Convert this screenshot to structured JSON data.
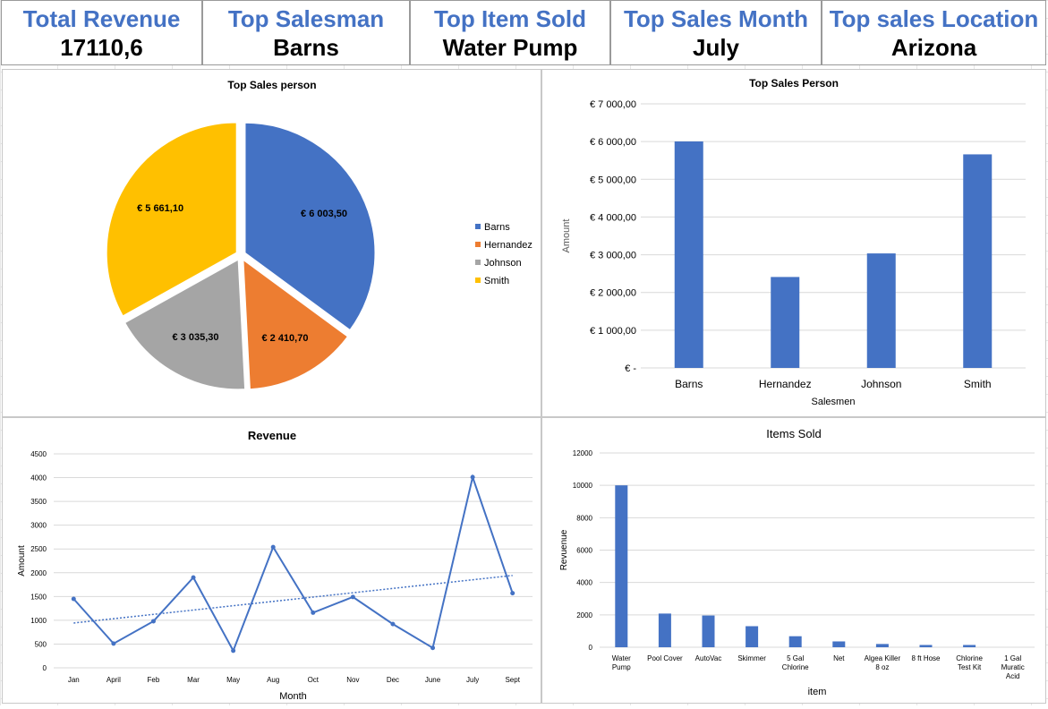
{
  "kpis": [
    {
      "title": "Total Revenue",
      "value": "17110,6"
    },
    {
      "title": "Top Salesman",
      "value": "Barns"
    },
    {
      "title": "Top Item Sold",
      "value": "Water Pump"
    },
    {
      "title": "Top Sales Month",
      "value": "July"
    },
    {
      "title": "Top sales Location",
      "value": "Arizona"
    }
  ],
  "colors": {
    "blue": "#4472c4",
    "orange": "#ed7d31",
    "gray": "#a5a5a5",
    "yellow": "#ffc000"
  },
  "chart_data": [
    {
      "type": "pie",
      "title": "Top Sales person",
      "categories": [
        "Barns",
        "Hernandez",
        "Johnson",
        "Smith"
      ],
      "values": [
        6003.5,
        2410.7,
        3035.3,
        5661.1
      ],
      "data_labels": [
        "€ 6 003,50",
        "€ 2 410,70",
        "€ 3 035,30",
        "€ 5 661,10"
      ],
      "colors": [
        "#4472c4",
        "#ed7d31",
        "#a5a5a5",
        "#ffc000"
      ],
      "legend": "right"
    },
    {
      "type": "bar",
      "title": "Top Sales Person",
      "categories": [
        "Barns",
        "Hernandez",
        "Johnson",
        "Smith"
      ],
      "values": [
        6003.5,
        2410.7,
        3035.3,
        5661.1
      ],
      "xlabel": "Salesmen",
      "ylabel": "Amount",
      "ylim": [
        0,
        7000
      ],
      "yticks": [
        "€ -",
        "€ 1 000,00",
        "€ 2 000,00",
        "€ 3 000,00",
        "€ 4 000,00",
        "€ 5 000,00",
        "€ 6 000,00",
        "€ 7 000,00"
      ],
      "grid": true
    },
    {
      "type": "line",
      "title": "Revenue",
      "categories": [
        "Jan",
        "April",
        "Feb",
        "Mar",
        "May",
        "Aug",
        "Oct",
        "Nov",
        "Dec",
        "June",
        "July",
        "Sept"
      ],
      "values": [
        1450,
        510,
        980,
        1900,
        360,
        2540,
        1160,
        1490,
        920,
        420,
        4010,
        1570
      ],
      "trendline": "linear",
      "xlabel": "Month",
      "ylabel": "Amount",
      "ylim": [
        0,
        4500
      ],
      "yticks": [
        "0",
        "500",
        "1000",
        "1500",
        "2000",
        "2500",
        "3000",
        "3500",
        "4000",
        "4500"
      ],
      "grid": true
    },
    {
      "type": "bar",
      "title": "Items Sold",
      "categories": [
        [
          "Water",
          "Pump"
        ],
        [
          "Pool Cover"
        ],
        [
          "AutoVac"
        ],
        [
          "Skimmer"
        ],
        [
          "5 Gal",
          "Chlorine"
        ],
        [
          "Net"
        ],
        [
          "Algea Killer",
          "8 oz"
        ],
        [
          "8 ft Hose"
        ],
        [
          "Chlorine",
          "Test Kit"
        ],
        [
          "1 Gal",
          "Muratic",
          "Acid"
        ]
      ],
      "values": [
        10000,
        2080,
        1960,
        1300,
        680,
        360,
        200,
        140,
        140,
        0
      ],
      "xlabel": "item",
      "ylabel": "Revuenue",
      "ylim": [
        0,
        12000
      ],
      "yticks": [
        "0",
        "2000",
        "4000",
        "6000",
        "8000",
        "10000",
        "12000"
      ],
      "grid": true
    }
  ]
}
